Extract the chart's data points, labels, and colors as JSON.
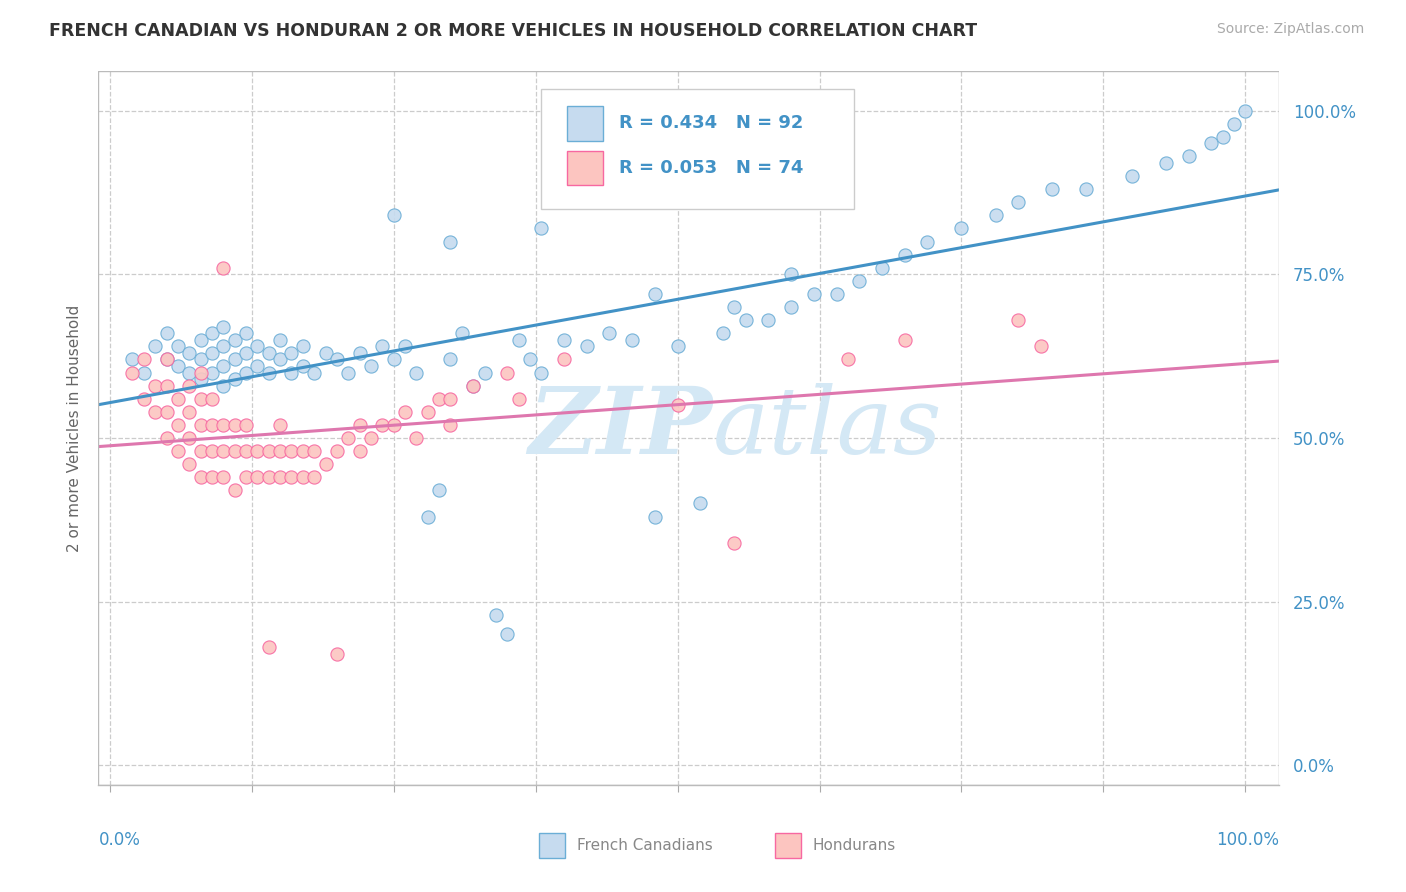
{
  "title": "FRENCH CANADIAN VS HONDURAN 2 OR MORE VEHICLES IN HOUSEHOLD CORRELATION CHART",
  "source": "Source: ZipAtlas.com",
  "ylabel": "2 or more Vehicles in Household",
  "legend_label1": "French Canadians",
  "legend_label2": "Hondurans",
  "r1": 0.434,
  "n1": 92,
  "r2": 0.053,
  "n2": 74,
  "blue_scatter_face": "#c6dbef",
  "blue_scatter_edge": "#6baed6",
  "pink_scatter_face": "#fcc5c0",
  "pink_scatter_edge": "#f768a1",
  "trend_blue": "#4292c6",
  "trend_pink": "#de77ae",
  "watermark_color": "#d4e8f5",
  "background": "#ffffff",
  "grid_color": "#cccccc",
  "tick_label_color": "#4292c6",
  "title_color": "#333333",
  "source_color": "#aaaaaa",
  "ylabel_color": "#666666",
  "bottom_legend_text_color": "#888888",
  "xlim": [
    0.0,
    1.0
  ],
  "ylim": [
    0.0,
    1.0
  ],
  "yticks": [
    0.0,
    0.25,
    0.5,
    0.75,
    1.0
  ],
  "ytick_labels": [
    "0.0%",
    "25.0%",
    "50.0%",
    "75.0%",
    "100.0%"
  ],
  "xtick_positions": [
    0.0,
    0.125,
    0.25,
    0.375,
    0.5,
    0.625,
    0.75,
    0.875,
    1.0
  ],
  "fc_x": [
    0.02,
    0.03,
    0.04,
    0.05,
    0.05,
    0.06,
    0.06,
    0.07,
    0.07,
    0.08,
    0.08,
    0.08,
    0.09,
    0.09,
    0.09,
    0.1,
    0.1,
    0.1,
    0.1,
    0.11,
    0.11,
    0.11,
    0.12,
    0.12,
    0.12,
    0.13,
    0.13,
    0.14,
    0.14,
    0.15,
    0.15,
    0.16,
    0.16,
    0.17,
    0.17,
    0.18,
    0.19,
    0.2,
    0.21,
    0.22,
    0.23,
    0.24,
    0.25,
    0.26,
    0.27,
    0.28,
    0.29,
    0.3,
    0.31,
    0.32,
    0.33,
    0.34,
    0.35,
    0.36,
    0.37,
    0.38,
    0.4,
    0.42,
    0.44,
    0.46,
    0.48,
    0.5,
    0.52,
    0.54,
    0.56,
    0.58,
    0.6,
    0.62,
    0.64,
    0.66,
    0.68,
    0.7,
    0.72,
    0.75,
    0.78,
    0.8,
    0.83,
    0.86,
    0.9,
    0.93,
    0.95,
    0.97,
    0.98,
    0.99,
    1.0,
    0.38,
    0.25,
    0.42,
    0.3,
    0.55,
    0.48,
    0.6
  ],
  "fc_y": [
    0.62,
    0.6,
    0.64,
    0.62,
    0.66,
    0.61,
    0.64,
    0.6,
    0.63,
    0.59,
    0.62,
    0.65,
    0.6,
    0.63,
    0.66,
    0.58,
    0.61,
    0.64,
    0.67,
    0.59,
    0.62,
    0.65,
    0.6,
    0.63,
    0.66,
    0.61,
    0.64,
    0.6,
    0.63,
    0.62,
    0.65,
    0.6,
    0.63,
    0.61,
    0.64,
    0.6,
    0.63,
    0.62,
    0.6,
    0.63,
    0.61,
    0.64,
    0.62,
    0.64,
    0.6,
    0.38,
    0.42,
    0.62,
    0.66,
    0.58,
    0.6,
    0.23,
    0.2,
    0.65,
    0.62,
    0.6,
    0.65,
    0.64,
    0.66,
    0.65,
    0.38,
    0.64,
    0.4,
    0.66,
    0.68,
    0.68,
    0.7,
    0.72,
    0.72,
    0.74,
    0.76,
    0.78,
    0.8,
    0.82,
    0.84,
    0.86,
    0.88,
    0.88,
    0.9,
    0.92,
    0.93,
    0.95,
    0.96,
    0.98,
    1.0,
    0.82,
    0.84,
    0.87,
    0.8,
    0.7,
    0.72,
    0.75
  ],
  "hon_x": [
    0.02,
    0.03,
    0.03,
    0.04,
    0.04,
    0.05,
    0.05,
    0.05,
    0.05,
    0.06,
    0.06,
    0.06,
    0.07,
    0.07,
    0.07,
    0.07,
    0.08,
    0.08,
    0.08,
    0.08,
    0.08,
    0.09,
    0.09,
    0.09,
    0.09,
    0.1,
    0.1,
    0.1,
    0.11,
    0.11,
    0.11,
    0.12,
    0.12,
    0.12,
    0.13,
    0.13,
    0.14,
    0.14,
    0.15,
    0.15,
    0.15,
    0.16,
    0.16,
    0.17,
    0.17,
    0.18,
    0.18,
    0.19,
    0.2,
    0.21,
    0.22,
    0.22,
    0.23,
    0.24,
    0.25,
    0.26,
    0.27,
    0.28,
    0.29,
    0.3,
    0.3,
    0.32,
    0.35,
    0.36,
    0.4,
    0.5,
    0.55,
    0.65,
    0.7,
    0.8,
    0.82,
    0.14,
    0.2,
    0.1
  ],
  "hon_y": [
    0.6,
    0.56,
    0.62,
    0.54,
    0.58,
    0.5,
    0.54,
    0.58,
    0.62,
    0.48,
    0.52,
    0.56,
    0.46,
    0.5,
    0.54,
    0.58,
    0.44,
    0.48,
    0.52,
    0.56,
    0.6,
    0.44,
    0.48,
    0.52,
    0.56,
    0.44,
    0.48,
    0.52,
    0.42,
    0.48,
    0.52,
    0.44,
    0.48,
    0.52,
    0.44,
    0.48,
    0.44,
    0.48,
    0.44,
    0.48,
    0.52,
    0.44,
    0.48,
    0.44,
    0.48,
    0.44,
    0.48,
    0.46,
    0.48,
    0.5,
    0.48,
    0.52,
    0.5,
    0.52,
    0.52,
    0.54,
    0.5,
    0.54,
    0.56,
    0.56,
    0.52,
    0.58,
    0.6,
    0.56,
    0.62,
    0.55,
    0.34,
    0.62,
    0.65,
    0.68,
    0.64,
    0.18,
    0.17,
    0.76
  ]
}
